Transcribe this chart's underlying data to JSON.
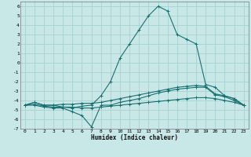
{
  "xlabel": "Humidex (Indice chaleur)",
  "background_color": "#c8e8e8",
  "grid_color": "#aad0d0",
  "line_color": "#1a7070",
  "xlim": [
    -0.5,
    23.5
  ],
  "ylim": [
    -7,
    6.5
  ],
  "xticks": [
    0,
    1,
    2,
    3,
    4,
    5,
    6,
    7,
    8,
    9,
    10,
    11,
    12,
    13,
    14,
    15,
    16,
    17,
    18,
    19,
    20,
    21,
    22,
    23
  ],
  "yticks": [
    -7,
    -6,
    -5,
    -4,
    -3,
    -2,
    -1,
    0,
    1,
    2,
    3,
    4,
    5,
    6
  ],
  "series": [
    {
      "x": [
        0,
        1,
        2,
        3,
        4,
        5,
        6,
        7,
        8,
        9,
        10,
        11,
        12,
        13,
        14,
        15,
        16,
        17,
        18,
        19,
        20,
        21,
        22,
        23
      ],
      "y": [
        -4.5,
        -4.2,
        -4.5,
        -4.5,
        -4.7,
        -4.8,
        -4.6,
        -4.5,
        -3.5,
        -2.0,
        0.5,
        2.0,
        3.5,
        5.0,
        6.0,
        5.5,
        3.0,
        2.5,
        2.0,
        -2.3,
        -2.6,
        -3.5,
        -3.8,
        -4.5
      ]
    },
    {
      "x": [
        0,
        1,
        2,
        3,
        4,
        5,
        6,
        7,
        8,
        9,
        10,
        11,
        12,
        13,
        14,
        15,
        16,
        17,
        18,
        19,
        20,
        21,
        22,
        23
      ],
      "y": [
        -4.5,
        -4.5,
        -4.7,
        -4.8,
        -4.8,
        -5.2,
        -5.6,
        -6.8,
        -4.5,
        -4.5,
        -4.2,
        -4.0,
        -3.8,
        -3.5,
        -3.2,
        -3.0,
        -2.8,
        -2.7,
        -2.6,
        -2.6,
        -3.4,
        -3.6,
        -4.0,
        -4.5
      ]
    },
    {
      "x": [
        0,
        1,
        2,
        3,
        4,
        5,
        6,
        7,
        8,
        9,
        10,
        11,
        12,
        13,
        14,
        15,
        16,
        17,
        18,
        19,
        20,
        21,
        22,
        23
      ],
      "y": [
        -4.5,
        -4.2,
        -4.5,
        -4.5,
        -4.4,
        -4.4,
        -4.3,
        -4.3,
        -4.2,
        -4.0,
        -3.8,
        -3.6,
        -3.4,
        -3.2,
        -3.0,
        -2.8,
        -2.6,
        -2.5,
        -2.4,
        -2.5,
        -3.3,
        -3.5,
        -3.8,
        -4.5
      ]
    },
    {
      "x": [
        0,
        1,
        2,
        3,
        4,
        5,
        6,
        7,
        8,
        9,
        10,
        11,
        12,
        13,
        14,
        15,
        16,
        17,
        18,
        19,
        20,
        21,
        22,
        23
      ],
      "y": [
        -4.5,
        -4.4,
        -4.6,
        -4.7,
        -4.7,
        -4.7,
        -4.8,
        -4.8,
        -4.7,
        -4.6,
        -4.5,
        -4.4,
        -4.3,
        -4.2,
        -4.1,
        -4.0,
        -3.9,
        -3.8,
        -3.7,
        -3.7,
        -3.8,
        -4.0,
        -4.2,
        -4.5
      ]
    }
  ]
}
